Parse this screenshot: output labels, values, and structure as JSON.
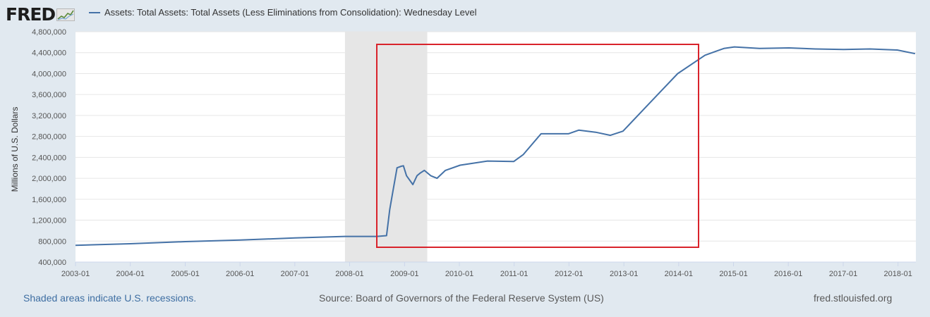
{
  "header": {
    "logo_text": "FRED"
  },
  "chart_data": {
    "type": "line",
    "title": "",
    "xlabel": "",
    "ylabel": "Millions of U.S. Dollars",
    "xlim": [
      "2003-01-01",
      "2018-04-30"
    ],
    "ylim": [
      400000,
      4800000
    ],
    "grid": true,
    "legend_position": "top-left",
    "x_ticks": [
      "2003-01",
      "2004-01",
      "2005-01",
      "2006-01",
      "2007-01",
      "2008-01",
      "2009-01",
      "2010-01",
      "2011-01",
      "2012-01",
      "2013-01",
      "2014-01",
      "2015-01",
      "2016-01",
      "2017-01",
      "2018-01"
    ],
    "y_ticks": [
      400000,
      800000,
      1200000,
      1600000,
      2000000,
      2400000,
      2800000,
      3200000,
      3600000,
      4000000,
      4400000,
      4800000
    ],
    "y_tick_labels": [
      "400,000",
      "800,000",
      "1,200,000",
      "1,600,000",
      "2,000,000",
      "2,400,000",
      "2,800,000",
      "3,200,000",
      "3,600,000",
      "4,000,000",
      "4,400,000",
      "4,800,000"
    ],
    "recessions": [
      {
        "start": "2007-12-01",
        "end": "2009-06-01"
      }
    ],
    "series": [
      {
        "name": "Assets: Total Assets: Total Assets (Less Eliminations from Consolidation): Wednesday Level",
        "color": "#4572a7",
        "points": [
          [
            "2003-01-01",
            720000
          ],
          [
            "2004-01-01",
            750000
          ],
          [
            "2005-01-01",
            790000
          ],
          [
            "2006-01-01",
            820000
          ],
          [
            "2007-01-01",
            860000
          ],
          [
            "2007-12-01",
            890000
          ],
          [
            "2008-07-01",
            890000
          ],
          [
            "2008-09-03",
            905000
          ],
          [
            "2008-09-24",
            1400000
          ],
          [
            "2008-10-15",
            1750000
          ],
          [
            "2008-11-12",
            2200000
          ],
          [
            "2008-12-10",
            2230000
          ],
          [
            "2008-12-24",
            2240000
          ],
          [
            "2009-01-14",
            2050000
          ],
          [
            "2009-02-25",
            1880000
          ],
          [
            "2009-03-25",
            2050000
          ],
          [
            "2009-04-15",
            2100000
          ],
          [
            "2009-05-13",
            2150000
          ],
          [
            "2009-06-24",
            2050000
          ],
          [
            "2009-08-05",
            2000000
          ],
          [
            "2009-09-30",
            2150000
          ],
          [
            "2010-01-06",
            2250000
          ],
          [
            "2010-07-07",
            2330000
          ],
          [
            "2010-12-29",
            2320000
          ],
          [
            "2011-03-02",
            2450000
          ],
          [
            "2011-06-29",
            2850000
          ],
          [
            "2011-12-28",
            2850000
          ],
          [
            "2012-03-07",
            2920000
          ],
          [
            "2012-06-27",
            2880000
          ],
          [
            "2012-10-03",
            2820000
          ],
          [
            "2012-12-26",
            2900000
          ],
          [
            "2013-06-26",
            3450000
          ],
          [
            "2013-12-25",
            4000000
          ],
          [
            "2014-06-25",
            4350000
          ],
          [
            "2014-10-29",
            4480000
          ],
          [
            "2015-01-07",
            4510000
          ],
          [
            "2015-06-24",
            4480000
          ],
          [
            "2016-01-06",
            4490000
          ],
          [
            "2016-06-29",
            4470000
          ],
          [
            "2017-01-04",
            4460000
          ],
          [
            "2017-06-28",
            4470000
          ],
          [
            "2017-12-27",
            4450000
          ],
          [
            "2018-04-25",
            4380000
          ]
        ]
      }
    ]
  },
  "annotation": {
    "box_color": "#d9232b"
  },
  "footer": {
    "note": "Shaded areas indicate U.S. recessions.",
    "source": "Source: Board of Governors of the Federal Reserve System (US)",
    "site": "fred.stlouisfed.org"
  }
}
